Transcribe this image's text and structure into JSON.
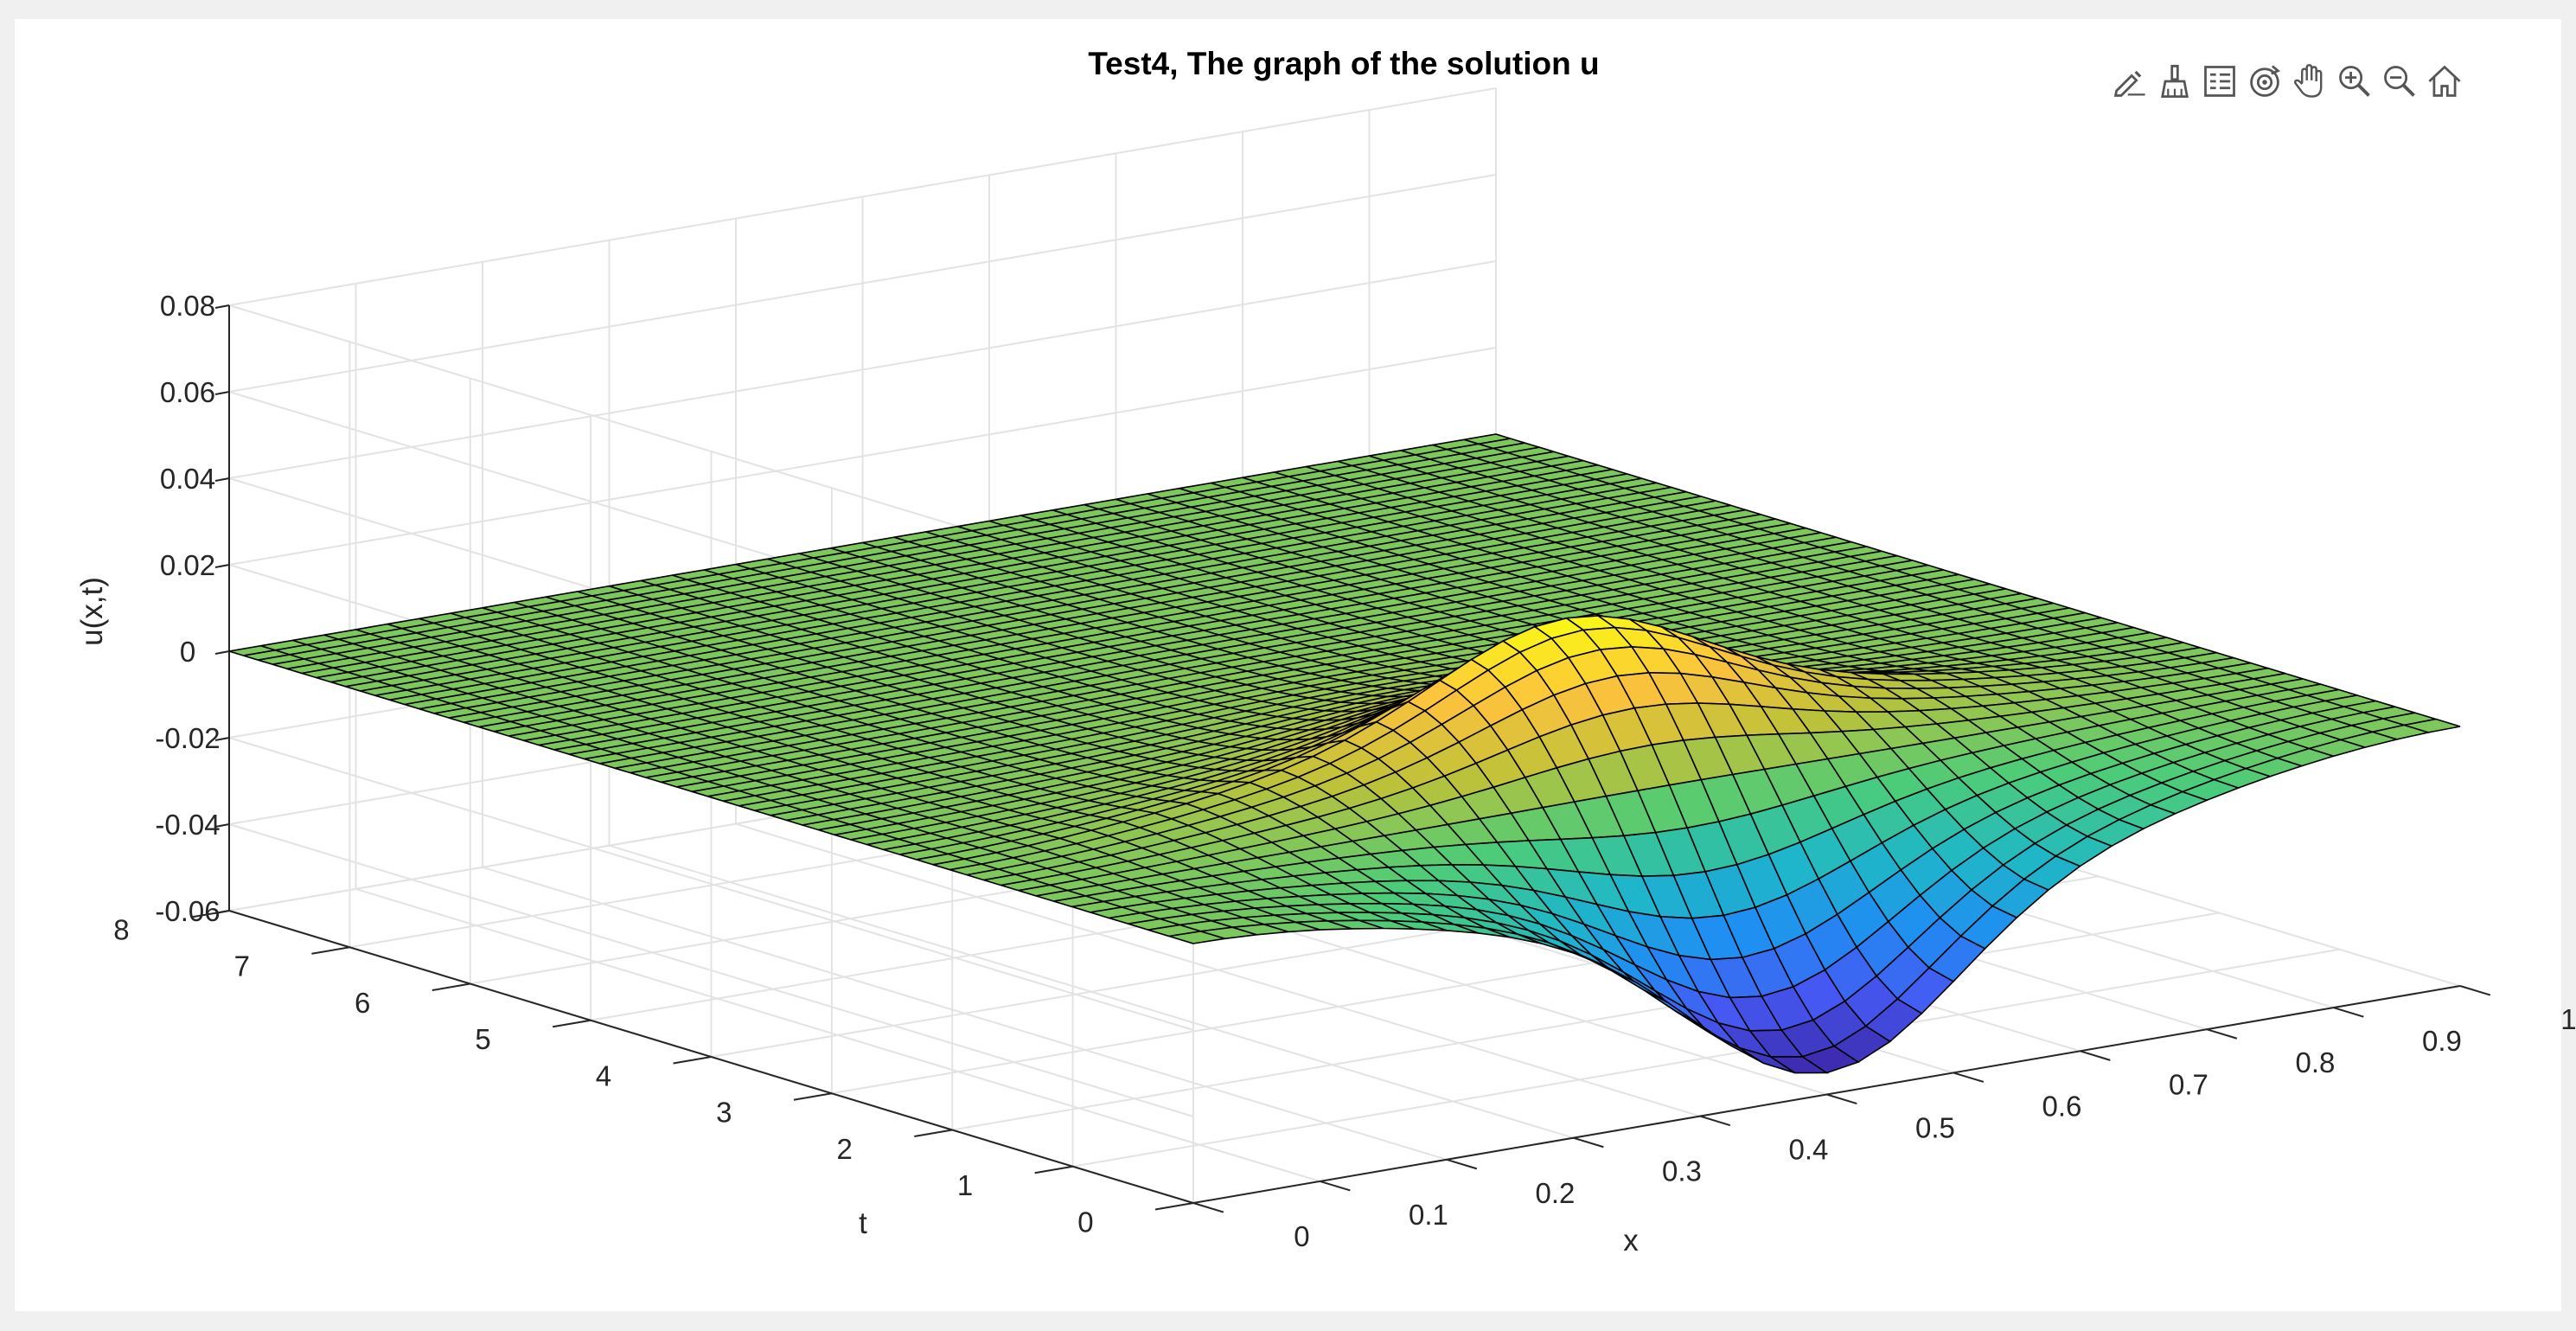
{
  "toolbar": {
    "buttons": [
      {
        "name": "edit-plot-icon"
      },
      {
        "name": "brush-icon"
      },
      {
        "name": "legend-icon"
      },
      {
        "name": "rotate-3d-icon"
      },
      {
        "name": "pan-hand-icon"
      },
      {
        "name": "zoom-in-icon"
      },
      {
        "name": "zoom-out-icon"
      },
      {
        "name": "home-icon"
      }
    ]
  },
  "chart_data": {
    "type": "surface",
    "title": "Test4, The graph of the solution u",
    "xlabel": "x",
    "ylabel": "t",
    "zlabel": "u(x,t)",
    "xlim": [
      0,
      1
    ],
    "ylim": [
      0,
      8
    ],
    "zlim": [
      -0.06,
      0.08
    ],
    "xticks": [
      "0",
      "0.1",
      "0.2",
      "0.3",
      "0.4",
      "0.5",
      "0.6",
      "0.7",
      "0.8",
      "0.9",
      "1"
    ],
    "yticks": [
      "0",
      "1",
      "2",
      "3",
      "4",
      "5",
      "6",
      "7",
      "8"
    ],
    "zticks": [
      "-0.06",
      "-0.04",
      "-0.02",
      "0",
      "0.02",
      "0.04",
      "0.06",
      "0.08"
    ],
    "grid": true,
    "colormap": "parula",
    "surface_samples": {
      "description_of_values": "u at t=0 across x; amplitude decays to 0 as t increases",
      "x": [
        0,
        0.1,
        0.2,
        0.3,
        0.4,
        0.5,
        0.6,
        0.7,
        0.8,
        0.9,
        1
      ],
      "u_t0": [
        0,
        0,
        0,
        -0.012,
        -0.038,
        -0.053,
        -0.04,
        -0.012,
        0.0,
        0,
        0
      ],
      "u_t_late": [
        0,
        0,
        0,
        0.008,
        0.024,
        0.03,
        0.025,
        0.012,
        0.004,
        0,
        0
      ]
    }
  }
}
